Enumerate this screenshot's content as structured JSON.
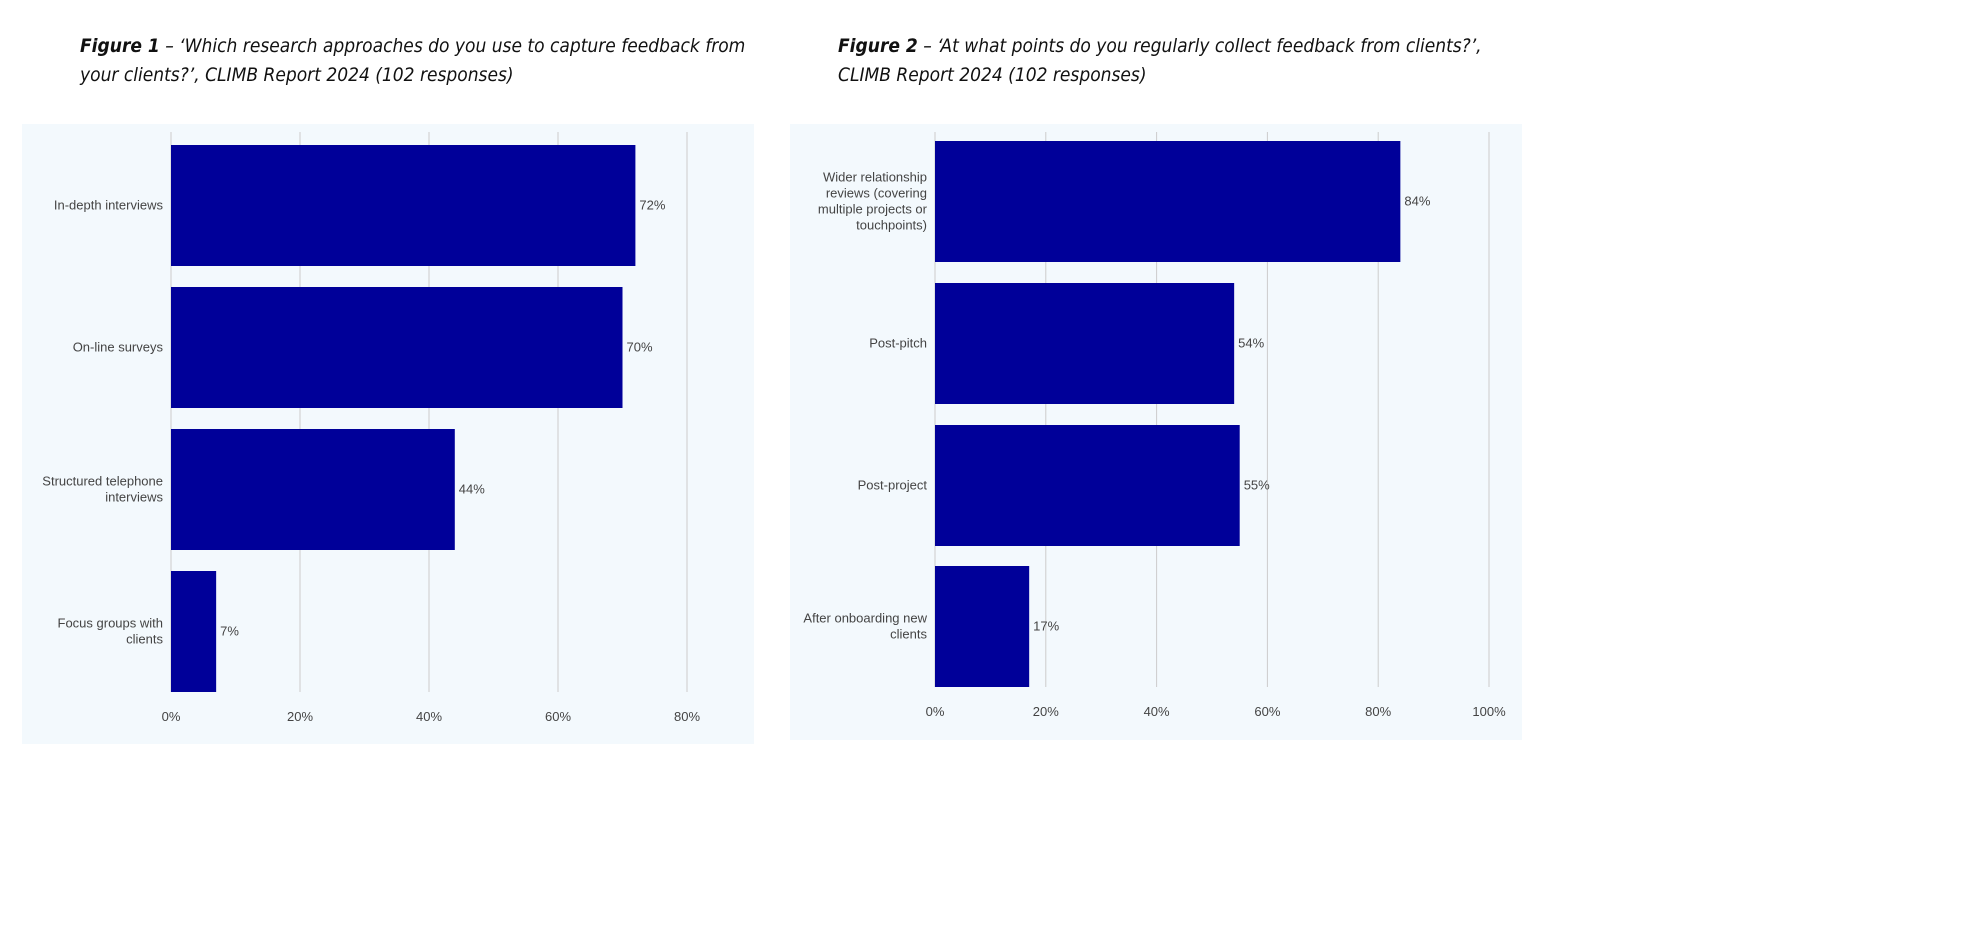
{
  "figures": [
    {
      "label": "Figure 1",
      "caption": " – ‘Which research approaches do you use to capture feedback from your clients?’, CLIMB Report 2024 (102 responses)"
    },
    {
      "label": "Figure 2",
      "caption": " – ‘At what points do you regularly collect feedback from clients?’, CLIMB Report 2024 (102 responses)"
    }
  ],
  "colors": {
    "bar": "#000099",
    "background": "#f3f9fd",
    "grid": "#cccccc",
    "text": "#444444"
  },
  "chart_data": [
    {
      "type": "bar",
      "orientation": "horizontal",
      "categories": [
        [
          "In-depth interviews"
        ],
        [
          "On-line surveys"
        ],
        [
          "Structured telephone",
          "interviews"
        ],
        [
          "Focus groups with",
          "clients"
        ]
      ],
      "values": [
        72,
        70,
        44,
        7
      ],
      "data_labels": [
        "72%",
        "70%",
        "44%",
        "7%"
      ],
      "xlim": [
        0,
        80
      ],
      "xticks": [
        0,
        20,
        40,
        60,
        80
      ],
      "xtick_labels": [
        "0%",
        "20%",
        "40%",
        "60%",
        "80%"
      ],
      "grid": true,
      "legend": "none"
    },
    {
      "type": "bar",
      "orientation": "horizontal",
      "categories": [
        [
          "Wider relationship",
          "reviews (covering",
          "multiple projects or",
          "touchpoints)"
        ],
        [
          "Post-pitch"
        ],
        [
          "Post-project"
        ],
        [
          "After onboarding new",
          "clients"
        ]
      ],
      "values": [
        84,
        54,
        55,
        17
      ],
      "data_labels": [
        "84%",
        "54%",
        "55%",
        "17%"
      ],
      "xlim": [
        0,
        100
      ],
      "xticks": [
        0,
        20,
        40,
        60,
        80,
        100
      ],
      "xtick_labels": [
        "0%",
        "20%",
        "40%",
        "60%",
        "80%",
        "100%"
      ],
      "grid": true,
      "legend": "none"
    }
  ]
}
